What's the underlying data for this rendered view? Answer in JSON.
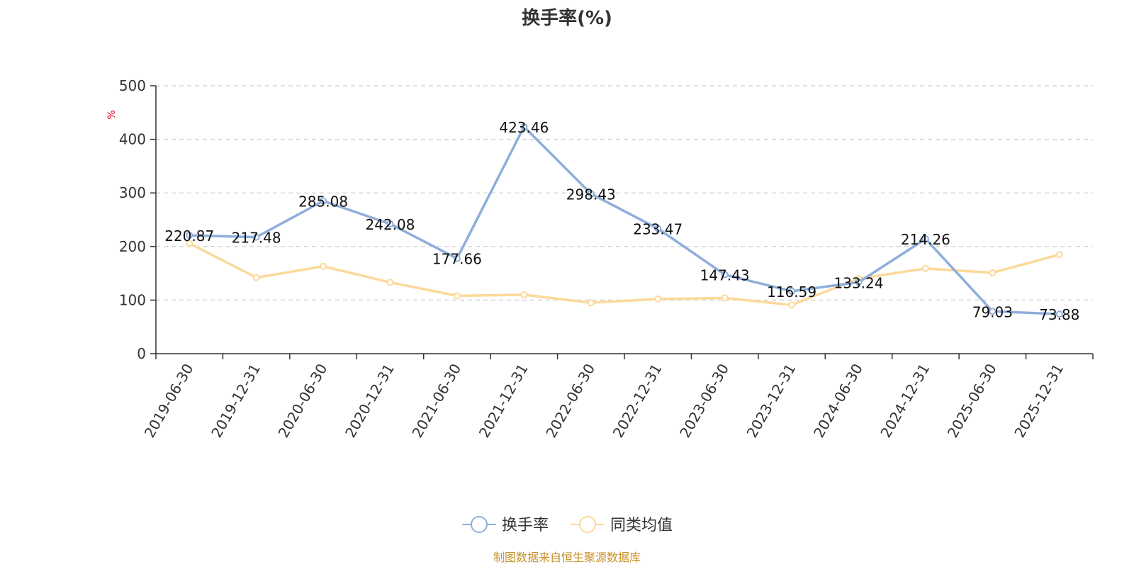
{
  "chart_data": {
    "type": "line",
    "title": "换手率(%)",
    "ylabel": "%",
    "ylim": [
      0,
      500
    ],
    "yticks": [
      0,
      100,
      200,
      300,
      400,
      500
    ],
    "grid": true,
    "legend_position": "bottom",
    "categories": [
      "2019-06-30",
      "2019-12-31",
      "2020-06-30",
      "2020-12-31",
      "2021-06-30",
      "2021-12-31",
      "2022-06-30",
      "2022-12-31",
      "2023-06-30",
      "2023-12-31",
      "2024-06-30",
      "2024-12-31",
      "2025-06-30",
      "2025-12-31"
    ],
    "series": [
      {
        "name": "换手率",
        "color": "#8eaedb",
        "values": [
          220.87,
          217.48,
          285.08,
          242.08,
          177.66,
          423.46,
          298.43,
          233.47,
          147.43,
          116.59,
          133.24,
          214.26,
          79.03,
          73.88
        ],
        "labels": [
          "220.87",
          "217.48",
          "285.08",
          "242.08",
          "177.66",
          "423.46",
          "298.43",
          "233.47",
          "147.43",
          "116.59",
          "133.24",
          "214.26",
          "79.03",
          "73.88"
        ]
      },
      {
        "name": "同类均值",
        "color": "#fcd99a",
        "values": [
          206,
          142,
          163,
          133,
          108,
          110,
          95,
          102,
          104,
          91,
          140,
          159,
          151,
          185
        ]
      }
    ]
  },
  "styles": {
    "unit_color": "#e60012",
    "source_color": "#c8922a",
    "axis_color": "#333333",
    "grid_color": "#cccccc"
  },
  "source_text": "制图数据来自恒生聚源数据库"
}
